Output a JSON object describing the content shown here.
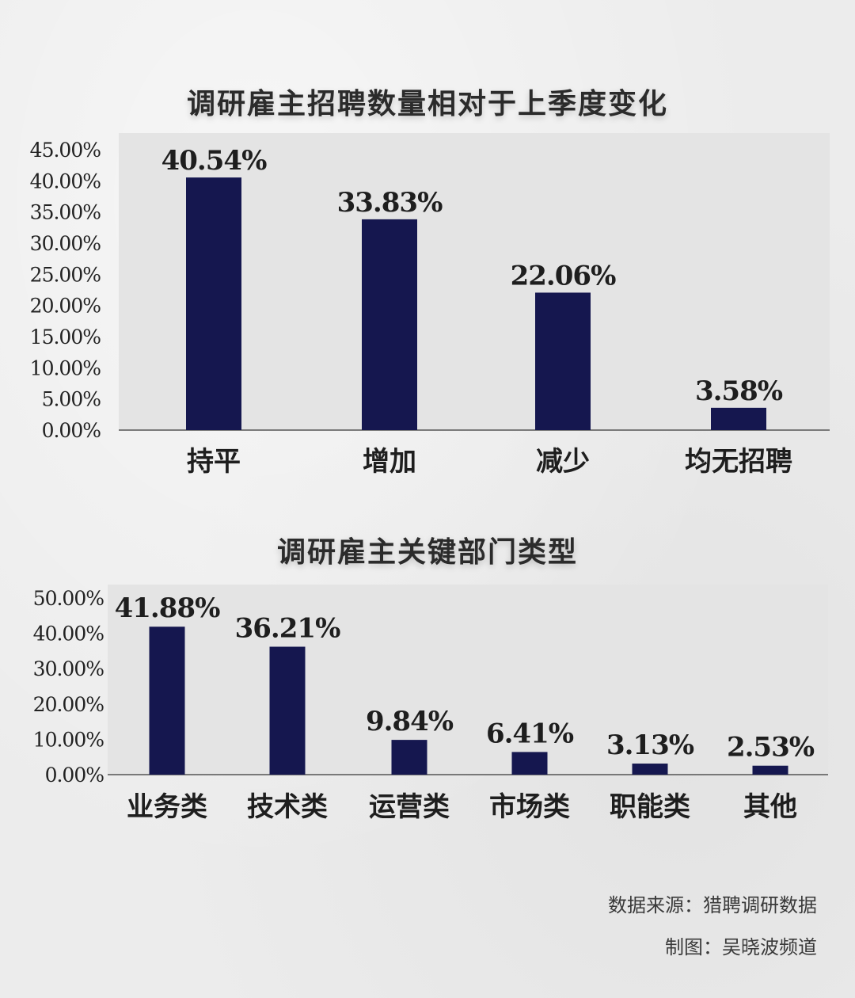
{
  "chart_data": [
    {
      "type": "bar",
      "title": "调研雇主招聘数量相对于上季度变化",
      "categories": [
        "持平",
        "增加",
        "减少",
        "均无招聘"
      ],
      "values": [
        40.54,
        33.83,
        22.06,
        3.58
      ],
      "data_labels": [
        "40.54%",
        "33.83%",
        "22.06%",
        "3.58%"
      ],
      "yticks": [
        "0.00%",
        "5.00%",
        "10.00%",
        "15.00%",
        "20.00%",
        "25.00%",
        "30.00%",
        "35.00%",
        "40.00%",
        "45.00%"
      ],
      "ylim": [
        0,
        45
      ],
      "bar_color": "#15174f",
      "grid": false,
      "xlabel": "",
      "ylabel": ""
    },
    {
      "type": "bar",
      "title": "调研雇主关键部门类型",
      "categories": [
        "业务类",
        "技术类",
        "运营类",
        "市场类",
        "职能类",
        "其他"
      ],
      "values": [
        41.88,
        36.21,
        9.84,
        6.41,
        3.13,
        2.53
      ],
      "data_labels": [
        "41.88%",
        "36.21%",
        "9.84%",
        "6.41%",
        "3.13%",
        "2.53%"
      ],
      "yticks": [
        "0.00%",
        "10.00%",
        "20.00%",
        "30.00%",
        "40.00%",
        "50.00%"
      ],
      "ylim": [
        0,
        50
      ],
      "bar_color": "#15174f",
      "grid": false,
      "xlabel": "",
      "ylabel": ""
    }
  ],
  "footer": {
    "source": "数据来源：猎聘调研数据",
    "maker": "制图：吴晓波频道"
  }
}
